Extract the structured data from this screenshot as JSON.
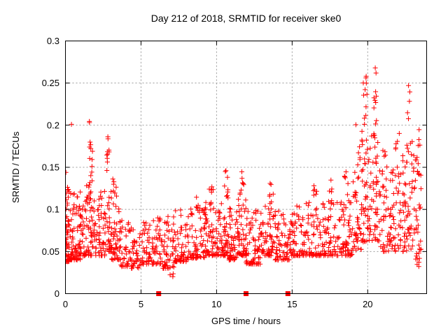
{
  "chart_data": {
    "type": "scatter",
    "title": "Day 212 of 2018, SRMTID for receiver ske0",
    "xlabel": "GPS time / hours",
    "ylabel": "SRMTID / TECUs",
    "xlim": [
      0,
      23.9
    ],
    "ylim": [
      0,
      0.3
    ],
    "xticks": [
      0,
      5,
      10,
      15,
      20
    ],
    "yticks": [
      0,
      0.05,
      0.1,
      0.15,
      0.2,
      0.25,
      0.3
    ],
    "ytick_labels": [
      "0",
      "0.05",
      "0.1",
      "0.15",
      "0.2",
      "0.25",
      "0.3"
    ],
    "grid": true,
    "legend_position": "none",
    "marker": "plus",
    "marker_color": "#ff0000",
    "marker_size_px": 7,
    "grid_color": "#999999",
    "axis_color": "#000000",
    "seed": 42,
    "series_name": "SRMTID",
    "baseline_squares_x": [
      6.17,
      11.95,
      14.72
    ],
    "bins_format": [
      "t_start_hours",
      "t_end_hours",
      "count",
      "y_min_TECUs",
      "y_max_TECUs",
      "skew_exponent"
    ],
    "density_bins": [
      [
        0.0,
        0.25,
        55,
        0.038,
        0.145,
        2.2
      ],
      [
        0.25,
        0.7,
        45,
        0.04,
        0.12,
        2.2
      ],
      [
        0.7,
        1.2,
        50,
        0.04,
        0.125,
        2.2
      ],
      [
        1.2,
        1.9,
        60,
        0.045,
        0.135,
        2.0
      ],
      [
        1.55,
        1.8,
        14,
        0.13,
        0.205,
        1.2
      ],
      [
        1.9,
        2.6,
        55,
        0.045,
        0.125,
        2.2
      ],
      [
        2.6,
        3.05,
        40,
        0.05,
        0.13,
        2.0
      ],
      [
        2.7,
        2.9,
        10,
        0.13,
        0.194,
        1.1
      ],
      [
        3.05,
        3.6,
        45,
        0.04,
        0.12,
        2.2
      ],
      [
        3.1,
        3.4,
        5,
        0.12,
        0.137,
        1
      ],
      [
        3.6,
        4.2,
        40,
        0.032,
        0.09,
        2.0
      ],
      [
        4.2,
        5.0,
        42,
        0.03,
        0.08,
        2.0
      ],
      [
        5.0,
        5.6,
        38,
        0.035,
        0.085,
        2.0
      ],
      [
        5.6,
        6.4,
        45,
        0.035,
        0.09,
        2.0
      ],
      [
        6.4,
        7.2,
        50,
        0.03,
        0.095,
        2.0
      ],
      [
        6.8,
        7.3,
        3,
        0.015,
        0.03,
        1
      ],
      [
        7.2,
        8.2,
        60,
        0.038,
        0.1,
        2.2
      ],
      [
        8.2,
        9.2,
        60,
        0.042,
        0.105,
        2.2
      ],
      [
        8.6,
        8.9,
        4,
        0.1,
        0.115,
        1
      ],
      [
        9.2,
        10.0,
        60,
        0.045,
        0.11,
        2.2
      ],
      [
        9.5,
        9.8,
        8,
        0.105,
        0.128,
        1
      ],
      [
        10.0,
        10.8,
        60,
        0.045,
        0.115,
        2.2
      ],
      [
        10.5,
        10.75,
        7,
        0.115,
        0.147,
        1
      ],
      [
        10.8,
        11.4,
        48,
        0.04,
        0.105,
        2.2
      ],
      [
        11.4,
        11.95,
        45,
        0.045,
        0.115,
        2.2
      ],
      [
        11.55,
        11.8,
        8,
        0.115,
        0.145,
        1
      ],
      [
        11.95,
        12.9,
        70,
        0.035,
        0.1,
        2.2
      ],
      [
        12.9,
        13.8,
        62,
        0.045,
        0.105,
        2.2
      ],
      [
        13.5,
        13.75,
        7,
        0.105,
        0.136,
        1
      ],
      [
        13.8,
        14.8,
        62,
        0.04,
        0.1,
        2.2
      ],
      [
        14.8,
        15.7,
        58,
        0.045,
        0.105,
        2.2
      ],
      [
        15.7,
        16.8,
        65,
        0.045,
        0.11,
        2.2
      ],
      [
        16.4,
        16.65,
        6,
        0.11,
        0.131,
        1
      ],
      [
        16.8,
        17.8,
        62,
        0.045,
        0.11,
        2.2
      ],
      [
        17.45,
        17.65,
        5,
        0.11,
        0.153,
        1
      ],
      [
        17.8,
        19.0,
        70,
        0.045,
        0.115,
        2.2
      ],
      [
        18.45,
        18.7,
        6,
        0.115,
        0.147,
        1
      ],
      [
        19.0,
        19.6,
        42,
        0.05,
        0.15,
        1.8
      ],
      [
        19.2,
        19.5,
        6,
        0.15,
        0.205,
        1
      ],
      [
        19.6,
        20.3,
        55,
        0.06,
        0.2,
        1.5
      ],
      [
        19.7,
        20.0,
        10,
        0.2,
        0.26,
        1.1
      ],
      [
        20.3,
        20.8,
        40,
        0.06,
        0.195,
        1.5
      ],
      [
        20.4,
        20.65,
        8,
        0.2,
        0.268,
        1.0
      ],
      [
        20.8,
        21.6,
        48,
        0.05,
        0.155,
        1.8
      ],
      [
        21.0,
        21.2,
        4,
        0.16,
        0.178,
        1
      ],
      [
        21.6,
        22.4,
        50,
        0.05,
        0.165,
        1.8
      ],
      [
        21.8,
        22.1,
        5,
        0.17,
        0.2,
        1
      ],
      [
        22.4,
        23.0,
        48,
        0.05,
        0.19,
        1.6
      ],
      [
        22.6,
        22.8,
        4,
        0.2,
        0.25,
        1
      ],
      [
        23.0,
        23.55,
        40,
        0.04,
        0.165,
        1.8
      ],
      [
        23.3,
        23.5,
        4,
        0.17,
        0.2,
        1
      ],
      [
        23.1,
        23.5,
        3,
        0.025,
        0.04,
        1
      ]
    ],
    "notable_points": [
      [
        0.4,
        0.201
      ],
      [
        19.9,
        0.258
      ],
      [
        20.5,
        0.268
      ],
      [
        20.55,
        0.262
      ],
      [
        22.7,
        0.247
      ],
      [
        10.62,
        0.146
      ]
    ]
  }
}
